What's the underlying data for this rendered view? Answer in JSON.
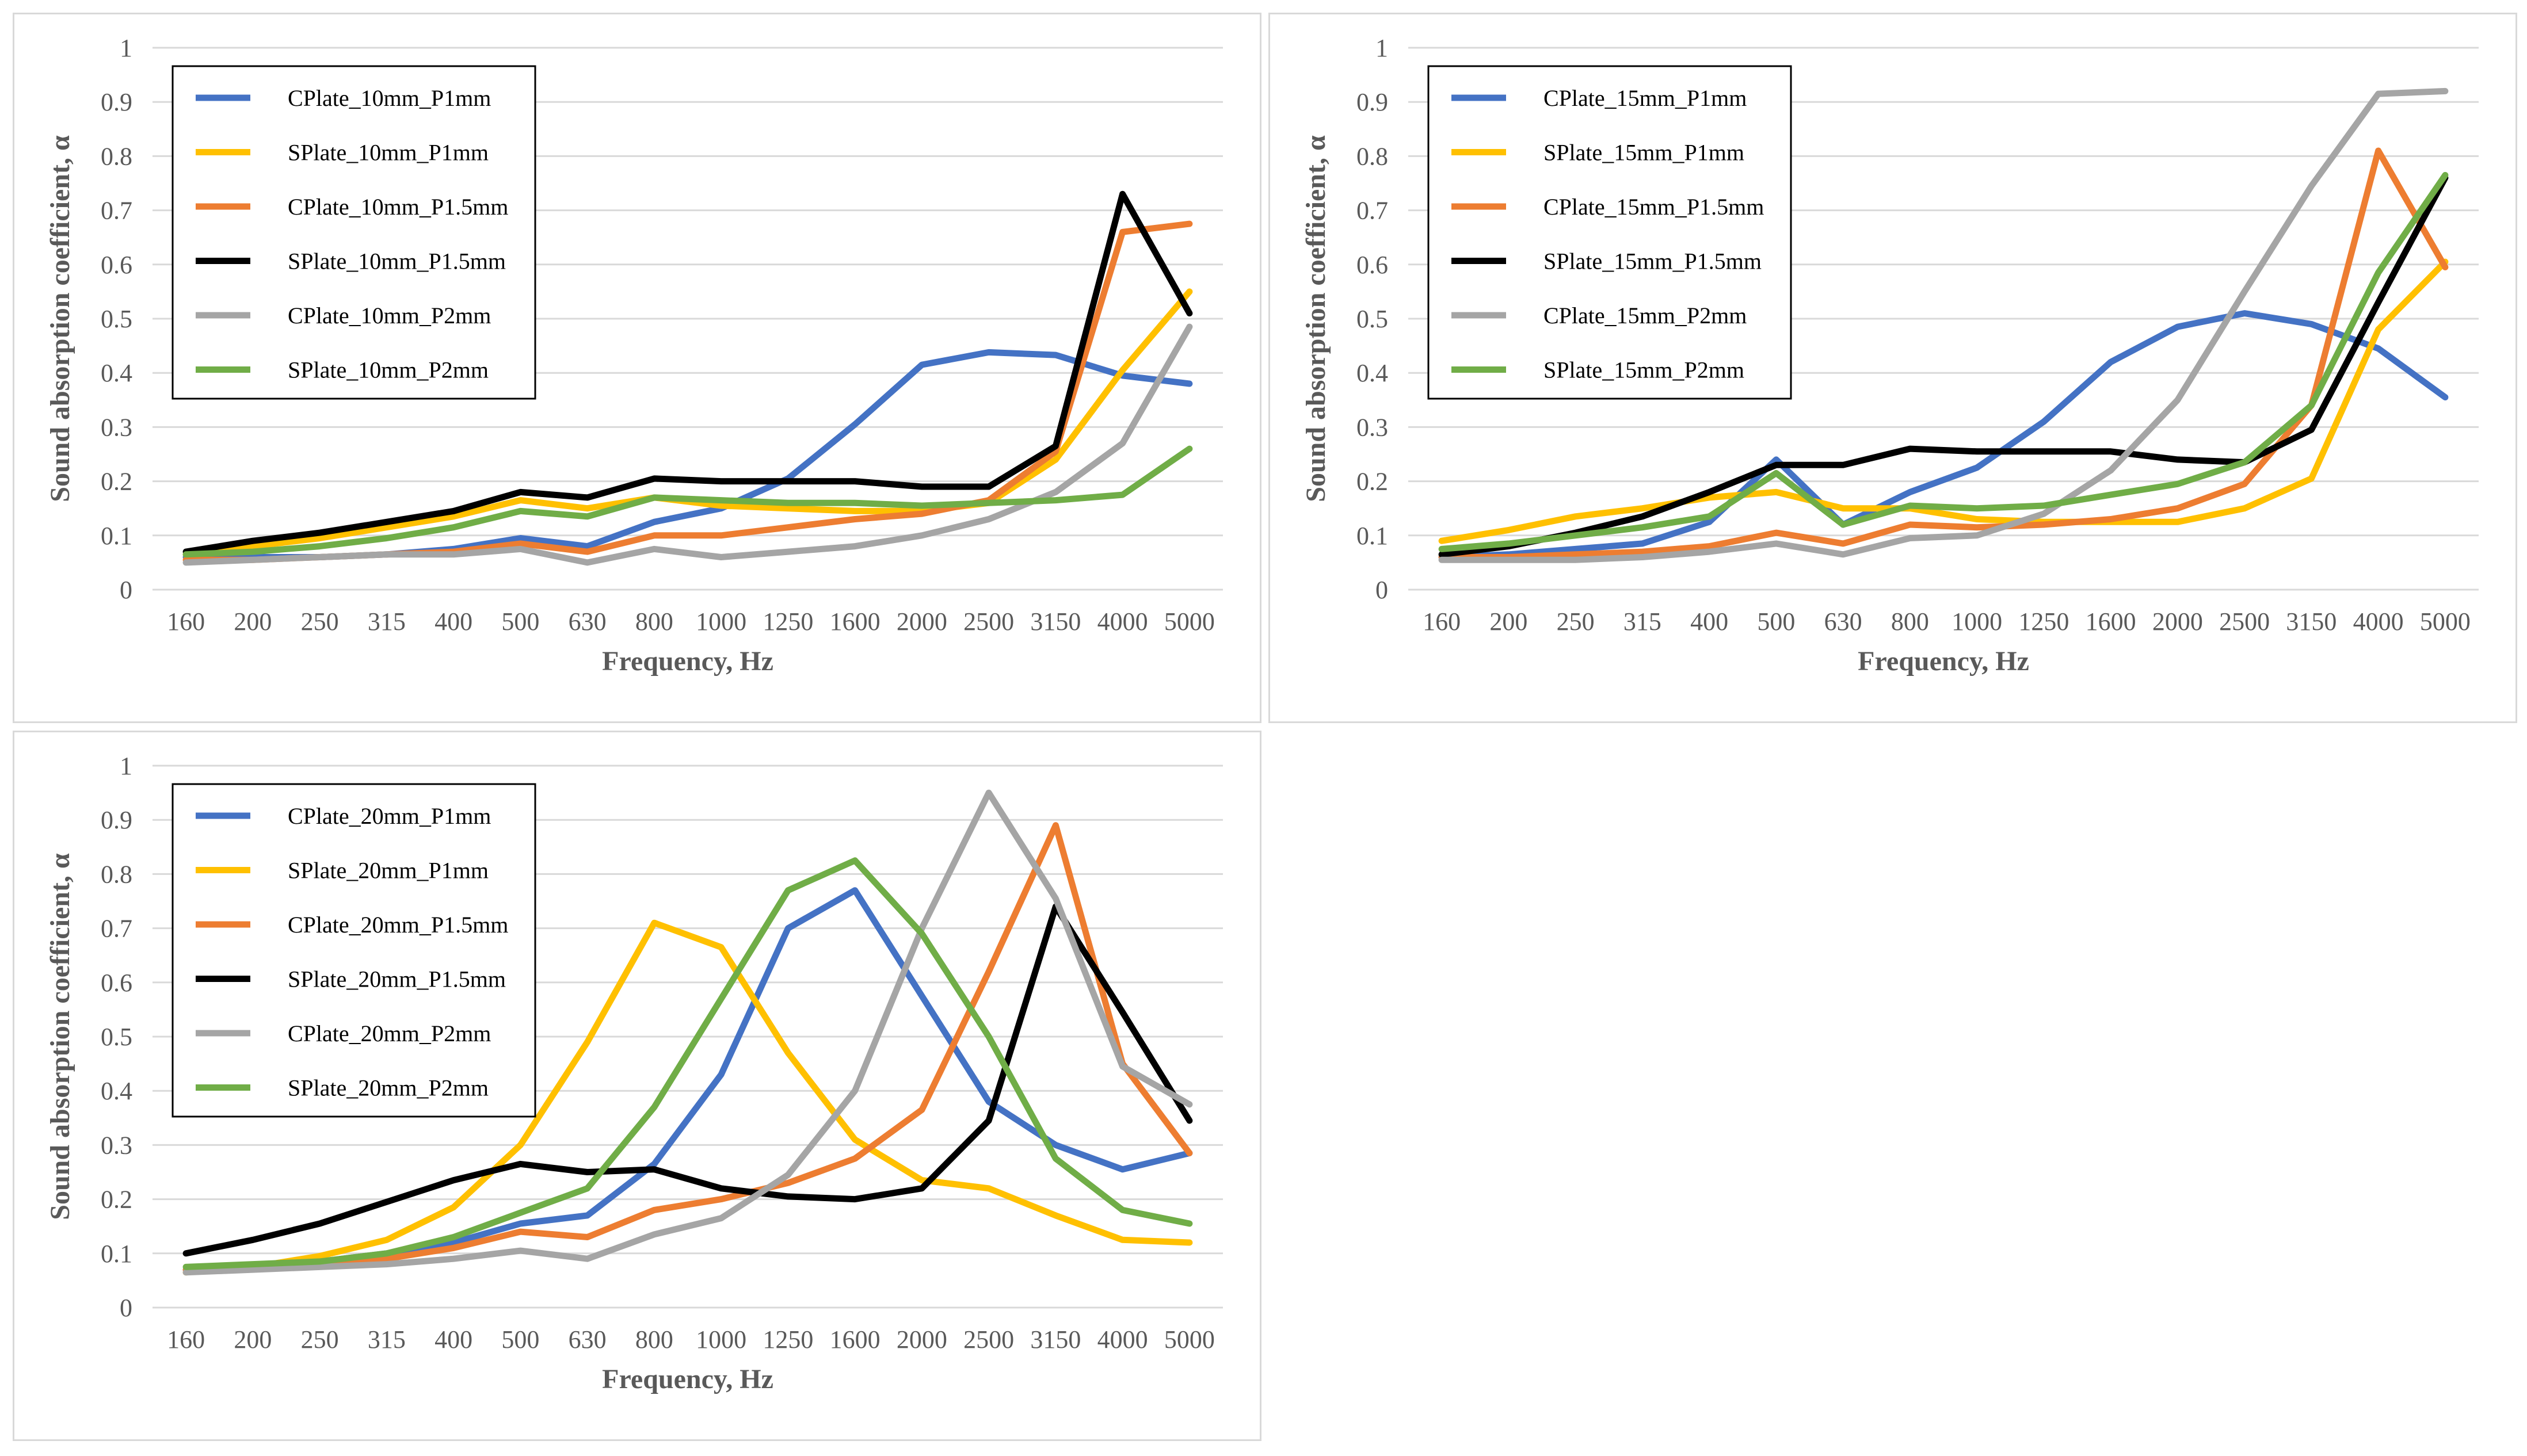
{
  "chart_data": [
    {
      "type": "line",
      "title": "",
      "xlabel": "Frequency, Hz",
      "ylabel": "Sound absorption coefficient, α",
      "categories": [
        "160",
        "200",
        "250",
        "315",
        "400",
        "500",
        "630",
        "800",
        "1000",
        "1250",
        "1600",
        "2000",
        "2500",
        "3150",
        "4000",
        "5000"
      ],
      "yticks": [
        "0",
        "0.1",
        "0.2",
        "0.3",
        "0.4",
        "0.5",
        "0.6",
        "0.7",
        "0.8",
        "0.9",
        "1"
      ],
      "ylim": [
        0,
        1
      ],
      "grid": true,
      "legend_position": "top-left",
      "series": [
        {
          "name": "CPlate_10mm_P1mm",
          "color": "#4472C4",
          "values": [
            0.06,
            0.06,
            0.06,
            0.065,
            0.075,
            0.095,
            0.08,
            0.125,
            0.15,
            0.205,
            0.305,
            0.415,
            0.438,
            0.433,
            0.395,
            0.38
          ]
        },
        {
          "name": "SPlate_10mm_P1mm",
          "color": "#FFC000",
          "values": [
            0.065,
            0.08,
            0.095,
            0.115,
            0.135,
            0.165,
            0.15,
            0.17,
            0.155,
            0.15,
            0.145,
            0.145,
            0.16,
            0.24,
            0.405,
            0.55
          ]
        },
        {
          "name": "CPlate_10mm_P1.5mm",
          "color": "#ED7D31",
          "values": [
            0.055,
            0.055,
            0.06,
            0.065,
            0.07,
            0.085,
            0.07,
            0.1,
            0.1,
            0.115,
            0.13,
            0.14,
            0.165,
            0.255,
            0.66,
            0.675
          ]
        },
        {
          "name": "SPlate_10mm_P1.5mm",
          "color": "#000000",
          "values": [
            0.07,
            0.09,
            0.105,
            0.125,
            0.145,
            0.18,
            0.17,
            0.205,
            0.2,
            0.2,
            0.2,
            0.19,
            0.19,
            0.265,
            0.73,
            0.51
          ]
        },
        {
          "name": "CPlate_10mm_P2mm",
          "color": "#A5A5A5",
          "values": [
            0.05,
            0.055,
            0.06,
            0.065,
            0.065,
            0.075,
            0.05,
            0.075,
            0.06,
            0.07,
            0.08,
            0.1,
            0.13,
            0.18,
            0.27,
            0.485
          ]
        },
        {
          "name": "SPlate_10mm_P2mm",
          "color": "#70AD47",
          "values": [
            0.065,
            0.07,
            0.08,
            0.095,
            0.115,
            0.145,
            0.135,
            0.17,
            0.165,
            0.16,
            0.16,
            0.155,
            0.16,
            0.165,
            0.175,
            0.26
          ]
        }
      ]
    },
    {
      "type": "line",
      "title": "",
      "xlabel": "Frequency, Hz",
      "ylabel": "Sound absorption coefficient, α",
      "categories": [
        "160",
        "200",
        "250",
        "315",
        "400",
        "500",
        "630",
        "800",
        "1000",
        "1250",
        "1600",
        "2000",
        "2500",
        "3150",
        "4000",
        "5000"
      ],
      "yticks": [
        "0",
        "0.1",
        "0.2",
        "0.3",
        "0.4",
        "0.5",
        "0.6",
        "0.7",
        "0.8",
        "0.9",
        "1"
      ],
      "ylim": [
        0,
        1
      ],
      "grid": true,
      "legend_position": "top-left",
      "series": [
        {
          "name": "CPlate_15mm_P1mm",
          "color": "#4472C4",
          "values": [
            0.06,
            0.065,
            0.075,
            0.085,
            0.125,
            0.24,
            0.12,
            0.18,
            0.225,
            0.31,
            0.42,
            0.485,
            0.51,
            0.49,
            0.445,
            0.355
          ]
        },
        {
          "name": "SPlate_15mm_P1mm",
          "color": "#FFC000",
          "values": [
            0.09,
            0.11,
            0.135,
            0.15,
            0.17,
            0.18,
            0.15,
            0.15,
            0.13,
            0.125,
            0.125,
            0.125,
            0.15,
            0.205,
            0.48,
            0.605
          ]
        },
        {
          "name": "CPlate_15mm_P1.5mm",
          "color": "#ED7D31",
          "values": [
            0.06,
            0.06,
            0.065,
            0.07,
            0.08,
            0.105,
            0.085,
            0.12,
            0.115,
            0.12,
            0.13,
            0.15,
            0.195,
            0.34,
            0.81,
            0.595
          ]
        },
        {
          "name": "SPlate_15mm_P1.5mm",
          "color": "#000000",
          "values": [
            0.065,
            0.08,
            0.105,
            0.135,
            0.18,
            0.23,
            0.23,
            0.26,
            0.255,
            0.255,
            0.255,
            0.24,
            0.235,
            0.295,
            0.53,
            0.76
          ]
        },
        {
          "name": "CPlate_15mm_P2mm",
          "color": "#A5A5A5",
          "values": [
            0.055,
            0.055,
            0.055,
            0.06,
            0.07,
            0.085,
            0.065,
            0.095,
            0.1,
            0.14,
            0.22,
            0.35,
            0.55,
            0.745,
            0.915,
            0.92
          ]
        },
        {
          "name": "SPlate_15mm_P2mm",
          "color": "#70AD47",
          "values": [
            0.075,
            0.085,
            0.1,
            0.115,
            0.135,
            0.215,
            0.12,
            0.155,
            0.15,
            0.155,
            0.175,
            0.195,
            0.235,
            0.34,
            0.585,
            0.765
          ]
        }
      ]
    },
    {
      "type": "line",
      "title": "",
      "xlabel": "Frequency, Hz",
      "ylabel": "Sound absorption coefficient, α",
      "categories": [
        "160",
        "200",
        "250",
        "315",
        "400",
        "500",
        "630",
        "800",
        "1000",
        "1250",
        "1600",
        "2000",
        "2500",
        "3150",
        "4000",
        "5000"
      ],
      "yticks": [
        "0",
        "0.1",
        "0.2",
        "0.3",
        "0.4",
        "0.5",
        "0.6",
        "0.7",
        "0.8",
        "0.9",
        "1"
      ],
      "ylim": [
        0,
        1
      ],
      "grid": true,
      "legend_position": "top-left",
      "series": [
        {
          "name": "CPlate_20mm_P1mm",
          "color": "#4472C4",
          "values": [
            0.07,
            0.075,
            0.085,
            0.1,
            0.12,
            0.155,
            0.17,
            0.265,
            0.43,
            0.7,
            0.77,
            0.575,
            0.38,
            0.3,
            0.255,
            0.285
          ]
        },
        {
          "name": "SPlate_20mm_P1mm",
          "color": "#FFC000",
          "values": [
            0.065,
            0.075,
            0.095,
            0.125,
            0.185,
            0.3,
            0.49,
            0.71,
            0.665,
            0.47,
            0.31,
            0.235,
            0.22,
            0.17,
            0.125,
            0.12
          ]
        },
        {
          "name": "CPlate_20mm_P1.5mm",
          "color": "#ED7D31",
          "values": [
            0.07,
            0.075,
            0.08,
            0.09,
            0.11,
            0.14,
            0.13,
            0.18,
            0.2,
            0.23,
            0.275,
            0.365,
            0.62,
            0.89,
            0.45,
            0.285
          ]
        },
        {
          "name": "SPlate_20mm_P1.5mm",
          "color": "#000000",
          "values": [
            0.1,
            0.125,
            0.155,
            0.195,
            0.235,
            0.265,
            0.25,
            0.255,
            0.22,
            0.205,
            0.2,
            0.22,
            0.345,
            0.74,
            0.545,
            0.345
          ]
        },
        {
          "name": "CPlate_20mm_P2mm",
          "color": "#A5A5A5",
          "values": [
            0.065,
            0.07,
            0.075,
            0.08,
            0.09,
            0.105,
            0.09,
            0.135,
            0.165,
            0.245,
            0.4,
            0.7,
            0.95,
            0.755,
            0.445,
            0.375
          ]
        },
        {
          "name": "SPlate_20mm_P2mm",
          "color": "#70AD47",
          "values": [
            0.075,
            0.08,
            0.085,
            0.1,
            0.13,
            0.175,
            0.22,
            0.37,
            0.57,
            0.77,
            0.825,
            0.69,
            0.5,
            0.275,
            0.18,
            0.155
          ]
        }
      ]
    }
  ]
}
